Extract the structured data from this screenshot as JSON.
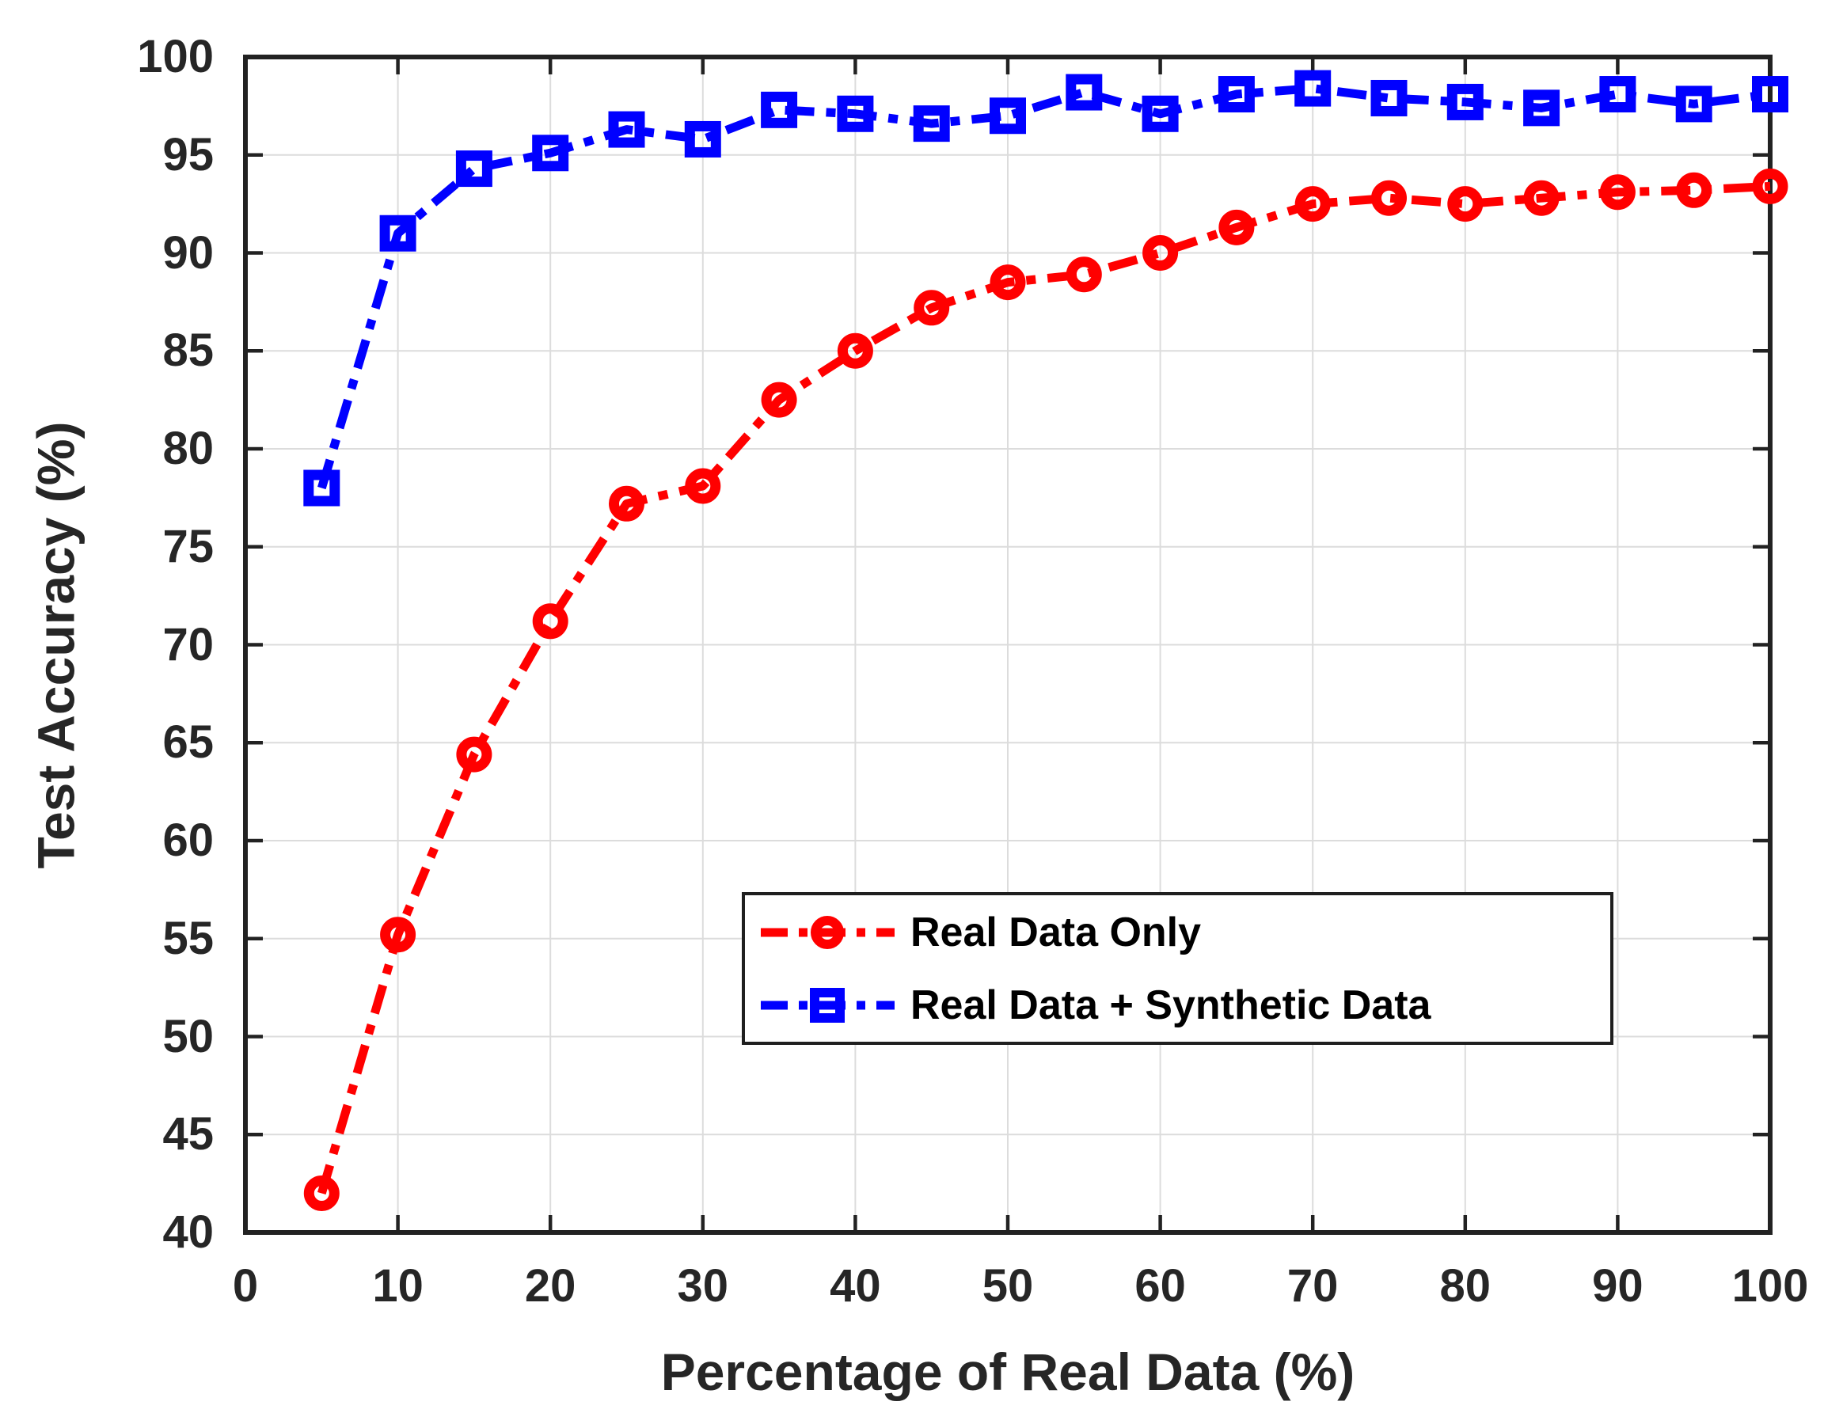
{
  "figure": {
    "background": "#ffffff",
    "frame_color": "#222222",
    "grid_color": "#dcdcdc",
    "tick_label_color": "#262626"
  },
  "chart_data": {
    "type": "line",
    "title": "",
    "xlabel": "Percentage of Real Data (%)",
    "ylabel": "Test Accuracy (%)",
    "xlim": [
      0,
      100
    ],
    "ylim": [
      40,
      100
    ],
    "xticks": [
      0,
      10,
      20,
      30,
      40,
      50,
      60,
      70,
      80,
      90,
      100
    ],
    "yticks": [
      40,
      45,
      50,
      55,
      60,
      65,
      70,
      75,
      80,
      85,
      90,
      95,
      100
    ],
    "grid": true,
    "legend_position": "inside-center-right",
    "x": [
      5,
      10,
      15,
      20,
      25,
      30,
      35,
      40,
      45,
      50,
      55,
      60,
      65,
      70,
      75,
      80,
      85,
      90,
      95,
      100
    ],
    "series": [
      {
        "name": "Real Data Only",
        "color": "#ff0000",
        "marker": "circle",
        "linestyle": "dash-dot",
        "values": [
          42.0,
          55.2,
          64.4,
          71.2,
          77.2,
          78.1,
          82.5,
          85.0,
          87.2,
          88.5,
          88.9,
          90.0,
          91.3,
          92.5,
          92.8,
          92.5,
          92.8,
          93.1,
          93.2,
          93.4
        ]
      },
      {
        "name": "Real Data + Synthetic Data",
        "color": "#0000ff",
        "marker": "square",
        "linestyle": "dash-dot",
        "values": [
          78.0,
          91.0,
          94.3,
          95.1,
          96.3,
          95.8,
          97.3,
          97.1,
          96.6,
          97.0,
          98.2,
          97.1,
          98.1,
          98.4,
          97.9,
          97.7,
          97.4,
          98.1,
          97.6,
          98.1
        ]
      }
    ]
  }
}
